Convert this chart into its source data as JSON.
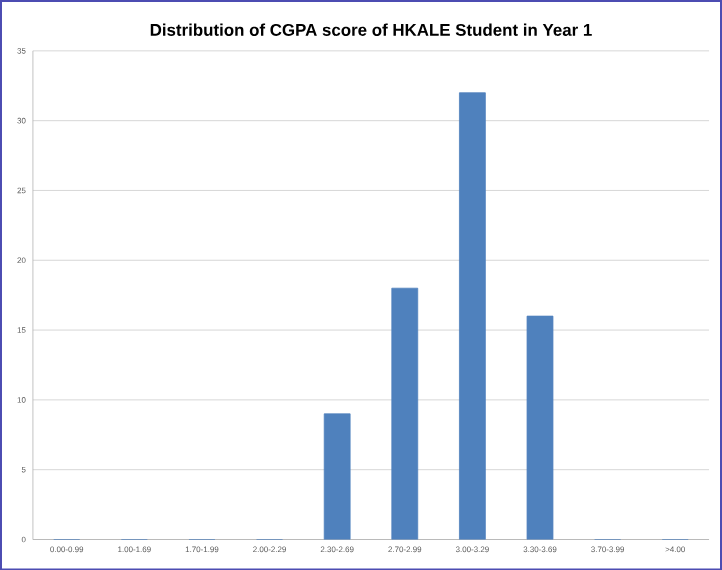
{
  "chart_data": {
    "type": "bar",
    "title": "Distribution of CGPA score of HKALE Student in Year 1",
    "categories": [
      "0.00-0.99",
      "1.00-1.69",
      "1.70-1.99",
      "2.00-2.29",
      "2.30-2.69",
      "2.70-2.99",
      "3.00-3.29",
      "3.30-3.69",
      "3.70-3.99",
      ">4.00"
    ],
    "values": [
      0,
      0,
      0,
      0,
      9,
      18,
      32,
      16,
      0,
      0
    ],
    "color": "#4f81bd",
    "ylim": [
      0,
      35
    ],
    "yticks": [
      0,
      5,
      10,
      15,
      20,
      25,
      30,
      35
    ],
    "grid": "y"
  }
}
